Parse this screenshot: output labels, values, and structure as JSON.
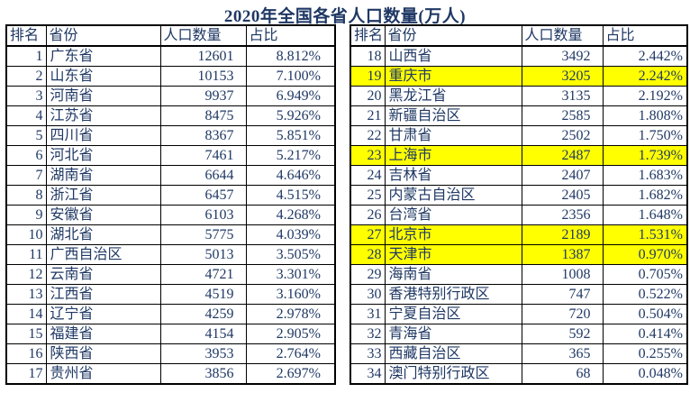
{
  "title": "2020年全国各省人口数量(万人)",
  "columns": [
    "排名",
    "省份",
    "人口数量",
    "占比"
  ],
  "column_keys": [
    "rank",
    "province",
    "population",
    "percent"
  ],
  "colors": {
    "text": "#1f3864",
    "highlight": "#ffff00",
    "border": "#000000",
    "background": "#ffffff"
  },
  "left_table": {
    "rows": [
      {
        "rank": 1,
        "province": "广东省",
        "population": 12601,
        "percent": "8.812%",
        "highlight": false
      },
      {
        "rank": 2,
        "province": "山东省",
        "population": 10153,
        "percent": "7.100%",
        "highlight": false
      },
      {
        "rank": 3,
        "province": "河南省",
        "population": 9937,
        "percent": "6.949%",
        "highlight": false
      },
      {
        "rank": 4,
        "province": "江苏省",
        "population": 8475,
        "percent": "5.926%",
        "highlight": false
      },
      {
        "rank": 5,
        "province": "四川省",
        "population": 8367,
        "percent": "5.851%",
        "highlight": false
      },
      {
        "rank": 6,
        "province": "河北省",
        "population": 7461,
        "percent": "5.217%",
        "highlight": false
      },
      {
        "rank": 7,
        "province": "湖南省",
        "population": 6644,
        "percent": "4.646%",
        "highlight": false
      },
      {
        "rank": 8,
        "province": "浙江省",
        "population": 6457,
        "percent": "4.515%",
        "highlight": false
      },
      {
        "rank": 9,
        "province": "安徽省",
        "population": 6103,
        "percent": "4.268%",
        "highlight": false
      },
      {
        "rank": 10,
        "province": "湖北省",
        "population": 5775,
        "percent": "4.039%",
        "highlight": false
      },
      {
        "rank": 11,
        "province": "广西自治区",
        "population": 5013,
        "percent": "3.505%",
        "highlight": false
      },
      {
        "rank": 12,
        "province": "云南省",
        "population": 4721,
        "percent": "3.301%",
        "highlight": false
      },
      {
        "rank": 13,
        "province": "江西省",
        "population": 4519,
        "percent": "3.160%",
        "highlight": false
      },
      {
        "rank": 14,
        "province": "辽宁省",
        "population": 4259,
        "percent": "2.978%",
        "highlight": false
      },
      {
        "rank": 15,
        "province": "福建省",
        "population": 4154,
        "percent": "2.905%",
        "highlight": false
      },
      {
        "rank": 16,
        "province": "陕西省",
        "population": 3953,
        "percent": "2.764%",
        "highlight": false
      },
      {
        "rank": 17,
        "province": "贵州省",
        "population": 3856,
        "percent": "2.697%",
        "highlight": false
      }
    ]
  },
  "right_table": {
    "rows": [
      {
        "rank": 18,
        "province": "山西省",
        "population": 3492,
        "percent": "2.442%",
        "highlight": false
      },
      {
        "rank": 19,
        "province": "重庆市",
        "population": 3205,
        "percent": "2.242%",
        "highlight": true
      },
      {
        "rank": 20,
        "province": "黑龙江省",
        "population": 3135,
        "percent": "2.192%",
        "highlight": false
      },
      {
        "rank": 21,
        "province": "新疆自治区",
        "population": 2585,
        "percent": "1.808%",
        "highlight": false
      },
      {
        "rank": 22,
        "province": "甘肃省",
        "population": 2502,
        "percent": "1.750%",
        "highlight": false
      },
      {
        "rank": 23,
        "province": "上海市",
        "population": 2487,
        "percent": "1.739%",
        "highlight": true
      },
      {
        "rank": 24,
        "province": "吉林省",
        "population": 2407,
        "percent": "1.683%",
        "highlight": false
      },
      {
        "rank": 25,
        "province": "内蒙古自治区",
        "population": 2405,
        "percent": "1.682%",
        "highlight": false
      },
      {
        "rank": 26,
        "province": "台湾省",
        "population": 2356,
        "percent": "1.648%",
        "highlight": false
      },
      {
        "rank": 27,
        "province": "北京市",
        "population": 2189,
        "percent": "1.531%",
        "highlight": true
      },
      {
        "rank": 28,
        "province": "天津市",
        "population": 1387,
        "percent": "0.970%",
        "highlight": true
      },
      {
        "rank": 29,
        "province": "海南省",
        "population": 1008,
        "percent": "0.705%",
        "highlight": false
      },
      {
        "rank": 30,
        "province": "香港特别行政区",
        "population": 747,
        "percent": "0.522%",
        "highlight": false
      },
      {
        "rank": 31,
        "province": "宁夏自治区",
        "population": 720,
        "percent": "0.504%",
        "highlight": false
      },
      {
        "rank": 32,
        "province": "青海省",
        "population": 592,
        "percent": "0.414%",
        "highlight": false
      },
      {
        "rank": 33,
        "province": "西藏自治区",
        "population": 365,
        "percent": "0.255%",
        "highlight": false
      },
      {
        "rank": 34,
        "province": "澳门特别行政区",
        "population": 68,
        "percent": "0.048%",
        "highlight": false
      }
    ]
  },
  "chart_data": {
    "type": "table",
    "title": "2020年全国各省人口数量(万人)",
    "unit": "万人",
    "columns": [
      "排名",
      "省份",
      "人口数量",
      "占比"
    ],
    "highlighted_ranks": [
      19,
      23,
      27,
      28
    ],
    "rows": [
      [
        1,
        "广东省",
        12601,
        "8.812%"
      ],
      [
        2,
        "山东省",
        10153,
        "7.100%"
      ],
      [
        3,
        "河南省",
        9937,
        "6.949%"
      ],
      [
        4,
        "江苏省",
        8475,
        "5.926%"
      ],
      [
        5,
        "四川省",
        8367,
        "5.851%"
      ],
      [
        6,
        "河北省",
        7461,
        "5.217%"
      ],
      [
        7,
        "湖南省",
        6644,
        "4.646%"
      ],
      [
        8,
        "浙江省",
        6457,
        "4.515%"
      ],
      [
        9,
        "安徽省",
        6103,
        "4.268%"
      ],
      [
        10,
        "湖北省",
        5775,
        "4.039%"
      ],
      [
        11,
        "广西自治区",
        5013,
        "3.505%"
      ],
      [
        12,
        "云南省",
        4721,
        "3.301%"
      ],
      [
        13,
        "江西省",
        4519,
        "3.160%"
      ],
      [
        14,
        "辽宁省",
        4259,
        "2.978%"
      ],
      [
        15,
        "福建省",
        4154,
        "2.905%"
      ],
      [
        16,
        "陕西省",
        3953,
        "2.764%"
      ],
      [
        17,
        "贵州省",
        3856,
        "2.697%"
      ],
      [
        18,
        "山西省",
        3492,
        "2.442%"
      ],
      [
        19,
        "重庆市",
        3205,
        "2.242%"
      ],
      [
        20,
        "黑龙江省",
        3135,
        "2.192%"
      ],
      [
        21,
        "新疆自治区",
        2585,
        "1.808%"
      ],
      [
        22,
        "甘肃省",
        2502,
        "1.750%"
      ],
      [
        23,
        "上海市",
        2487,
        "1.739%"
      ],
      [
        24,
        "吉林省",
        2407,
        "1.683%"
      ],
      [
        25,
        "内蒙古自治区",
        2405,
        "1.682%"
      ],
      [
        26,
        "台湾省",
        2356,
        "1.648%"
      ],
      [
        27,
        "北京市",
        2189,
        "1.531%"
      ],
      [
        28,
        "天津市",
        1387,
        "0.970%"
      ],
      [
        29,
        "海南省",
        1008,
        "0.705%"
      ],
      [
        30,
        "香港特别行政区",
        747,
        "0.522%"
      ],
      [
        31,
        "宁夏自治区",
        720,
        "0.504%"
      ],
      [
        32,
        "青海省",
        592,
        "0.414%"
      ],
      [
        33,
        "西藏自治区",
        365,
        "0.255%"
      ],
      [
        34,
        "澳门特别行政区",
        68,
        "0.048%"
      ]
    ]
  }
}
